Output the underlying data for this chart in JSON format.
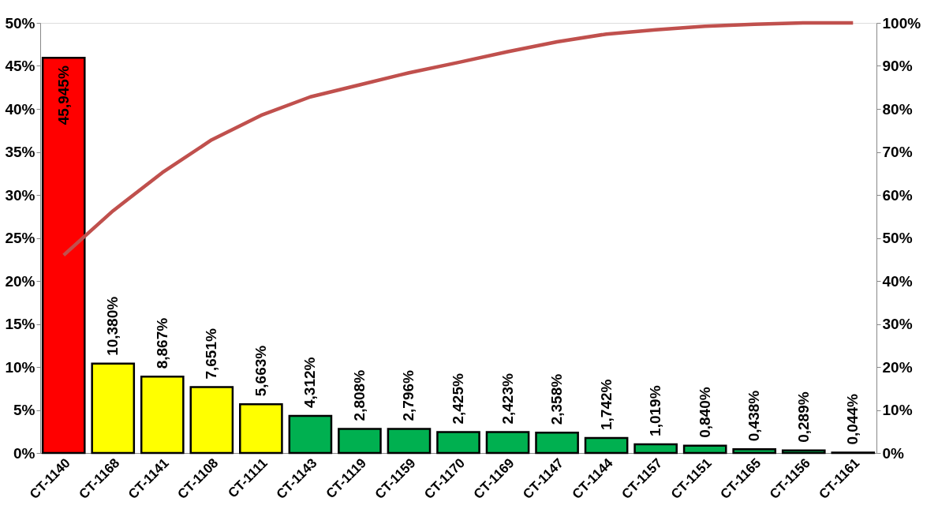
{
  "chart_data": {
    "type": "bar",
    "categories": [
      "CT-1140",
      "CT-1168",
      "CT-1141",
      "CT-1108",
      "CT-1111",
      "CT-1143",
      "CT-1119",
      "CT-1159",
      "CT-1170",
      "CT-1169",
      "CT-1147",
      "CT-1144",
      "CT-1157",
      "CT-1151",
      "CT-1165",
      "CT-1156",
      "CT-1161"
    ],
    "series": [
      {
        "values": [
          45.945,
          10.38,
          8.867,
          7.651,
          5.663,
          4.312,
          2.808,
          2.796,
          2.425,
          2.423,
          2.358,
          1.742,
          1.019,
          0.84,
          0.438,
          0.289,
          0.044
        ],
        "colors": [
          "#ff0000",
          "#ffff00",
          "#ffff00",
          "#ffff00",
          "#ffff00",
          "#00b050",
          "#00b050",
          "#00b050",
          "#00b050",
          "#00b050",
          "#00b050",
          "#00b050",
          "#00b050",
          "#00b050",
          "#00b050",
          "#00b050",
          "#00b050"
        ],
        "value_labels": [
          "45,945%",
          "10,380%",
          "8,867%",
          "7,651%",
          "5,663%",
          "4,312%",
          "2,808%",
          "2,796%",
          "2,425%",
          "2,423%",
          "2,358%",
          "1,742%",
          "1,019%",
          "0,840%",
          "0,438%",
          "0,289%",
          "0,044%"
        ]
      },
      {
        "type": "line",
        "axis": "y2",
        "color": "#c0504d",
        "values": [
          46.0,
          56.3,
          65.2,
          72.8,
          78.5,
          82.8,
          85.6,
          88.4,
          90.8,
          93.3,
          95.6,
          97.4,
          98.4,
          99.2,
          99.7,
          100,
          100
        ]
      }
    ],
    "ylim": [
      0,
      50
    ],
    "yticks": [
      {
        "value": 0,
        "label": "0%"
      },
      {
        "value": 5,
        "label": "5%"
      },
      {
        "value": 10,
        "label": "10%"
      },
      {
        "value": 15,
        "label": "15%"
      },
      {
        "value": 20,
        "label": "20%"
      },
      {
        "value": 25,
        "label": "25%"
      },
      {
        "value": 30,
        "label": "30%"
      },
      {
        "value": 35,
        "label": "35%"
      },
      {
        "value": 40,
        "label": "40%"
      },
      {
        "value": 45,
        "label": "45%"
      },
      {
        "value": 50,
        "label": "50%"
      }
    ],
    "y2lim": [
      0,
      100
    ],
    "y2ticks": [
      {
        "value": 0,
        "label": "0%"
      },
      {
        "value": 10,
        "label": "10%"
      },
      {
        "value": 20,
        "label": "20%"
      },
      {
        "value": 30,
        "label": "30%"
      },
      {
        "value": 40,
        "label": "40%"
      },
      {
        "value": 50,
        "label": "50%"
      },
      {
        "value": 60,
        "label": "60%"
      },
      {
        "value": 70,
        "label": "70%"
      },
      {
        "value": 80,
        "label": "80%"
      },
      {
        "value": 90,
        "label": "90%"
      },
      {
        "value": 100,
        "label": "100%"
      }
    ],
    "grid": false,
    "legend": false
  }
}
